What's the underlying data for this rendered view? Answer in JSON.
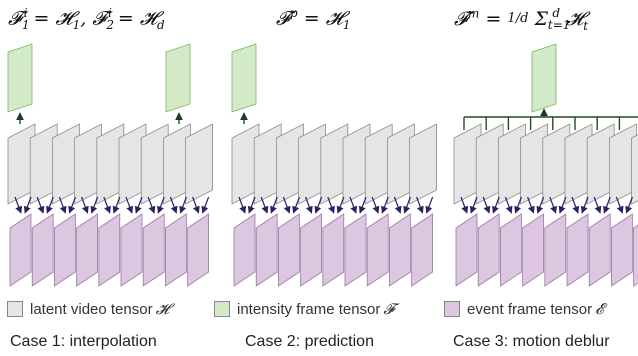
{
  "equations": {
    "case1": "𝓕₁ⁱ = 𝓗₁, 𝓕₂ⁱ = 𝓗_d",
    "case2": "𝓕ᵖ = 𝓗₁",
    "case3": "𝓕ᵐ = (1/d) Σ_{t=1}^{d} 𝓗_t"
  },
  "legend": [
    {
      "label": "latent video tensor",
      "symbol": "𝓗",
      "color": "#e5e5e5"
    },
    {
      "label": "intensity frame tensor",
      "symbol": "𝓕",
      "color": "#d3eac7"
    },
    {
      "label": "event frame tensor",
      "symbol": "𝓔",
      "color": "#dcc6e0"
    }
  ],
  "cases": {
    "case1": "Case 1: interpolation",
    "case2": "Case 2: prediction",
    "case3": "Case 3: motion deblur"
  },
  "colors": {
    "gray_fill": "#e5e5e5",
    "gray_stroke": "#8c8c8c",
    "green_fill": "#d3eac7",
    "green_stroke": "#7fae6a",
    "purple_fill": "#dcc6e0",
    "purple_stroke": "#9a7aa3",
    "arrow_dark": "#2d1f66",
    "connector": "#1f4f1f"
  },
  "counts": {
    "latent_frames": 9,
    "event_frames": 9
  }
}
